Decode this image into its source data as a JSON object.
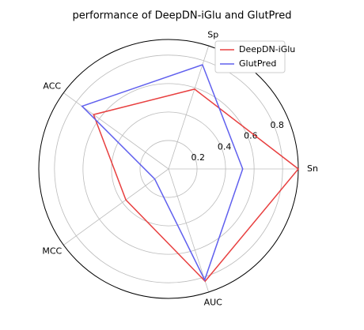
{
  "chart_data": {
    "type": "radar",
    "title": "performance of DeepDN-iGlu and GlutPred",
    "categories": [
      "Sn",
      "Sp",
      "ACC",
      "MCC",
      "AUC"
    ],
    "series": [
      {
        "name": "DeepDN-iGlu",
        "color": "#e84040",
        "values": [
          0.91,
          0.59,
          0.65,
          0.37,
          0.83
        ]
      },
      {
        "name": "GlutPred",
        "color": "#6060ee",
        "values": [
          0.52,
          0.77,
          0.75,
          0.12,
          0.82
        ]
      }
    ],
    "ylim": [
      0,
      0.91
    ],
    "yticks": [
      0.2,
      0.4,
      0.6,
      0.8
    ],
    "grid": true,
    "legend": "upper right"
  }
}
